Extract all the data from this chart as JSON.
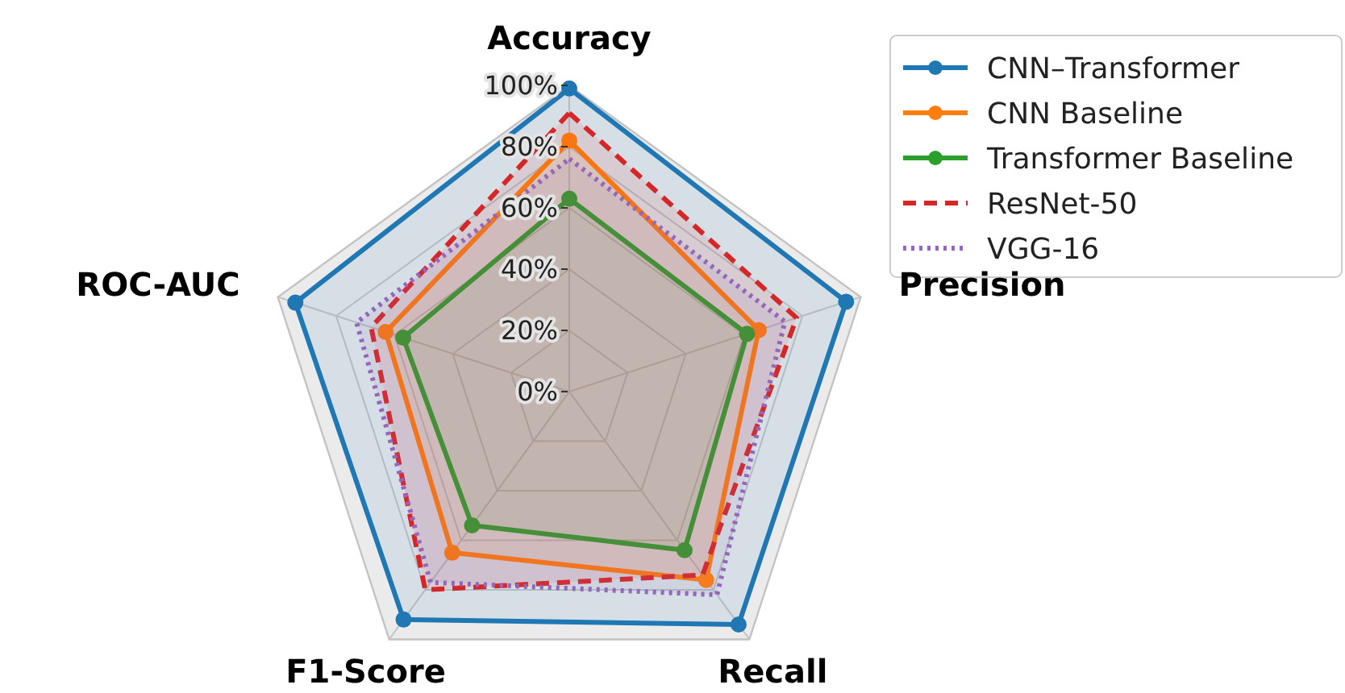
{
  "chart_data": {
    "type": "radar",
    "categories": [
      "Accuracy",
      "Precision",
      "Recall",
      "F1-Score",
      "ROC-AUC"
    ],
    "ylim": [
      0,
      1
    ],
    "yticks": [
      {
        "value": 0,
        "label": "0%"
      },
      {
        "value": 0.2,
        "label": "20%"
      },
      {
        "value": 0.4,
        "label": "40%"
      },
      {
        "value": 0.6,
        "label": "60%"
      },
      {
        "value": 0.8,
        "label": "80%"
      },
      {
        "value": 1,
        "label": "100%"
      }
    ],
    "grid": true,
    "legend": "top right",
    "series": [
      {
        "name": "CNN–Transformer",
        "color": "#1f77b4",
        "values": [
          0.99,
          0.95,
          0.94,
          0.92,
          0.94
        ],
        "marker": "circle",
        "line_style": "solid"
      },
      {
        "name": "CNN Baseline",
        "color": "#ff7f0e",
        "values": [
          0.82,
          0.65,
          0.76,
          0.65,
          0.63
        ],
        "marker": "circle",
        "line_style": "solid"
      },
      {
        "name": "Transformer Baseline",
        "color": "#2ca02c",
        "values": [
          0.63,
          0.61,
          0.64,
          0.54,
          0.57
        ],
        "marker": "circle",
        "line_style": "solid"
      },
      {
        "name": "ResNet-50",
        "color": "#d62728",
        "values": [
          0.91,
          0.78,
          0.74,
          0.8,
          0.68
        ],
        "marker": "none",
        "line_style": "dashed"
      },
      {
        "name": "VGG-16",
        "color": "#9467bd",
        "values": [
          0.76,
          0.74,
          0.82,
          0.77,
          0.73
        ],
        "marker": "none",
        "line_style": "dotted"
      }
    ]
  }
}
